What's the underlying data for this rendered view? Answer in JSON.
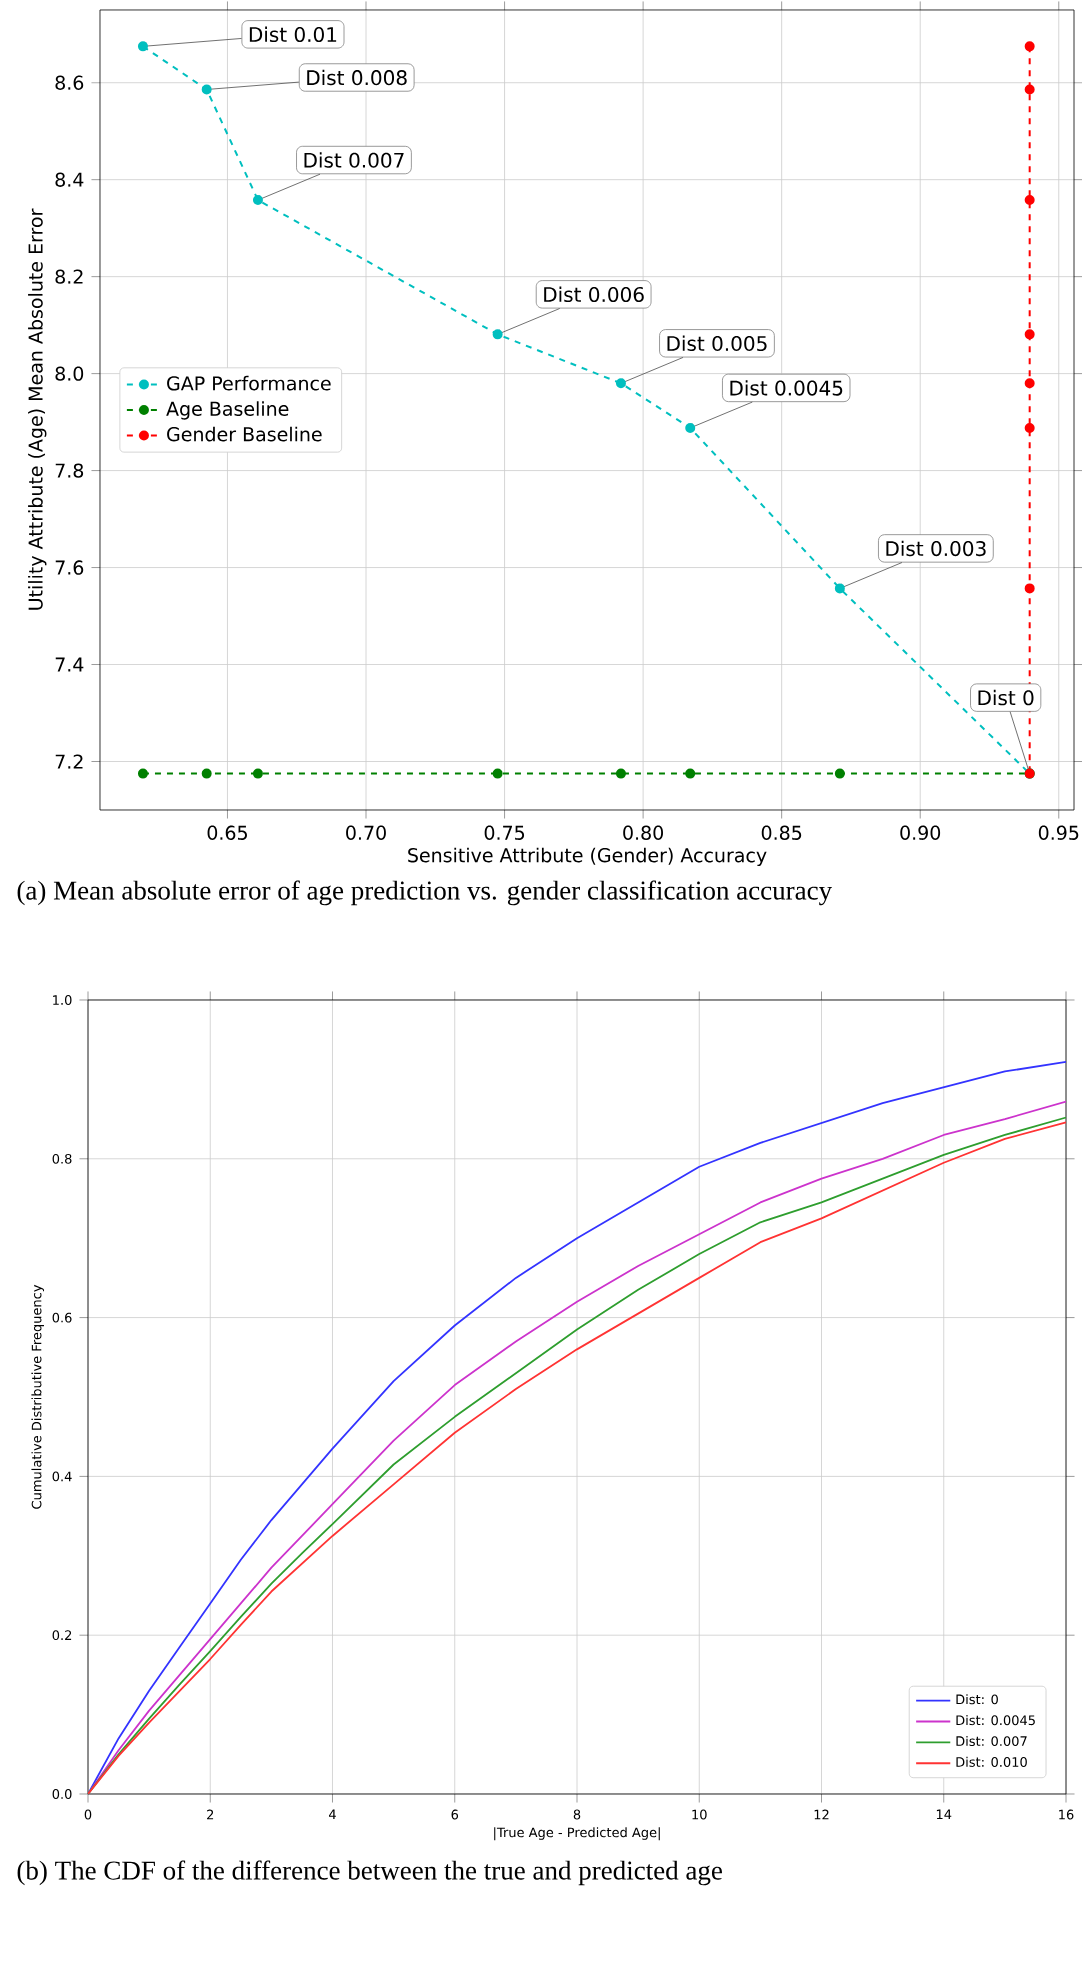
{
  "chart_data": [
    {
      "type": "line",
      "xlabel": "Sensitive Attribute (Gender) Accuracy",
      "ylabel": "Utility Attribute (Age) Mean Absolute Error",
      "xlim": [
        0.604,
        0.9555
      ],
      "ylim": [
        7.1,
        8.75
      ],
      "xticks": [
        0.65,
        {
          "value": 0.7,
          "label": "0.70"
        },
        0.75,
        {
          "value": 0.8,
          "label": "0.80"
        },
        0.85,
        {
          "value": 0.9,
          "label": "0.90"
        },
        0.95
      ],
      "yticks": [
        7.2,
        7.4,
        7.6,
        7.8,
        {
          "value": 8,
          "label": "8.0"
        },
        8.2,
        8.4,
        8.6
      ],
      "grid": true,
      "legend": "left",
      "marker": "circle",
      "line_style": "dashed",
      "series": [
        {
          "name": "GAP Performance",
          "color": "#00bfbf",
          "x": [
            0.6195,
            0.6425,
            0.661,
            0.7475,
            0.792,
            0.817,
            0.871,
            0.9395
          ],
          "values": [
            8.675,
            8.586,
            8.358,
            8.081,
            7.98,
            7.888,
            7.557,
            7.175
          ]
        },
        {
          "name": "Age Baseline",
          "color": "#008000",
          "x": [
            0.6195,
            0.6425,
            0.661,
            0.7475,
            0.792,
            0.817,
            0.871,
            0.9395
          ],
          "values": [
            7.175,
            7.175,
            7.175,
            7.175,
            7.175,
            7.175,
            7.175,
            7.175
          ]
        },
        {
          "name": "Gender Baseline",
          "color": "#ff0000",
          "x": [
            0.9395,
            0.9395,
            0.9395,
            0.9395,
            0.9395,
            0.9395,
            0.9395,
            0.9395
          ],
          "values": [
            8.675,
            8.586,
            8.358,
            8.081,
            7.98,
            7.888,
            7.557,
            7.175
          ]
        }
      ],
      "annotations": [
        {
          "text": "Dist 0.01",
          "x": 0.6195,
          "y": 8.675
        },
        {
          "text": "Dist 0.008",
          "x": 0.6425,
          "y": 8.586
        },
        {
          "text": "Dist 0.007",
          "x": 0.661,
          "y": 8.358
        },
        {
          "text": "Dist 0.006",
          "x": 0.7475,
          "y": 8.081
        },
        {
          "text": "Dist 0.005",
          "x": 0.792,
          "y": 7.98
        },
        {
          "text": "Dist 0.0045",
          "x": 0.817,
          "y": 7.888
        },
        {
          "text": "Dist 0.003",
          "x": 0.871,
          "y": 7.557
        },
        {
          "text": "Dist 0",
          "x": 0.9395,
          "y": 7.175
        },
        "(a) Mean absolute error of age prediction vs. gender classification accuracy"
      ]
    },
    {
      "type": "line",
      "xlabel": "|True Age - Predicted Age|",
      "ylabel": "Cumulative Distributive Frequency",
      "xlim": [
        0,
        16
      ],
      "ylim": [
        0,
        1.0
      ],
      "xticks": [
        0,
        2,
        4,
        6,
        8,
        10,
        12,
        14,
        16
      ],
      "yticks": [
        {
          "value": 0,
          "label": "0.0"
        },
        0.2,
        0.4,
        0.6,
        0.8,
        {
          "value": 1,
          "label": "1.0"
        }
      ],
      "grid": true,
      "legend": "bottom right",
      "line_style": "solid",
      "x": [
        0,
        0.5,
        1,
        1.5,
        2,
        2.5,
        3,
        3.5,
        4,
        5,
        6,
        7,
        8,
        9,
        10,
        11,
        12,
        13,
        14,
        15,
        16
      ],
      "series": [
        {
          "name": "Dist: 0",
          "color": "#3333ff",
          "values": [
            0,
            0.07,
            0.13,
            0.185,
            0.24,
            0.295,
            0.345,
            0.39,
            0.435,
            0.52,
            0.59,
            0.65,
            0.7,
            0.745,
            0.79,
            0.82,
            0.845,
            0.87,
            0.89,
            0.91,
            0.922
          ]
        },
        {
          "name": "Dist: 0.0045",
          "color": "#cc33cc",
          "values": [
            0,
            0.055,
            0.105,
            0.15,
            0.195,
            0.24,
            0.285,
            0.325,
            0.365,
            0.445,
            0.515,
            0.57,
            0.62,
            0.665,
            0.705,
            0.745,
            0.775,
            0.8,
            0.83,
            0.85,
            0.872
          ]
        },
        {
          "name": "Dist: 0.007",
          "color": "#2e9e2e",
          "values": [
            0,
            0.05,
            0.095,
            0.138,
            0.18,
            0.223,
            0.265,
            0.303,
            0.34,
            0.415,
            0.475,
            0.53,
            0.585,
            0.635,
            0.68,
            0.72,
            0.745,
            0.775,
            0.805,
            0.83,
            0.852
          ]
        },
        {
          "name": "Dist: 0.010",
          "color": "#ff3333",
          "values": [
            0,
            0.048,
            0.09,
            0.13,
            0.17,
            0.213,
            0.255,
            0.29,
            0.325,
            0.39,
            0.455,
            0.51,
            0.56,
            0.605,
            0.65,
            0.695,
            0.725,
            0.76,
            0.795,
            0.825,
            0.846
          ]
        }
      ],
      "annotations": [
        "(b) The CDF of the difference between the true and predicted age"
      ]
    }
  ]
}
